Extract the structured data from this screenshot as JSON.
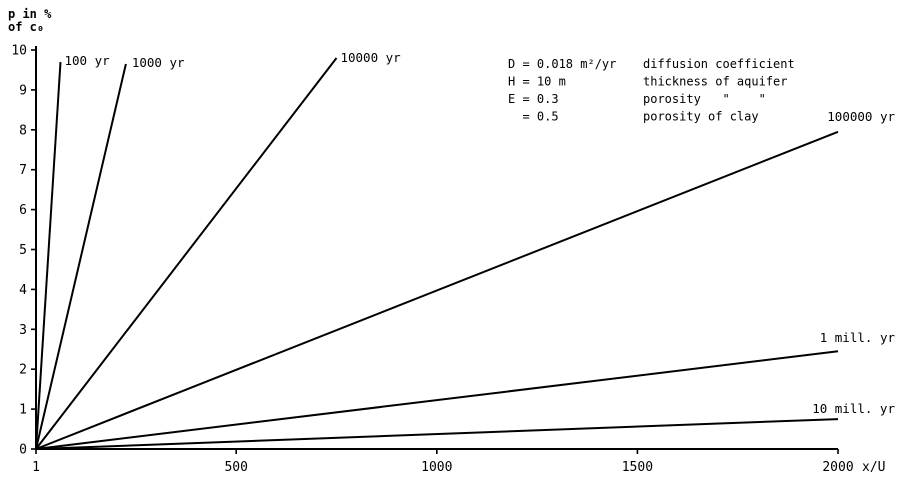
{
  "chart_data": {
    "type": "line",
    "title": "",
    "ylabel": [
      "p in %",
      "of c₀"
    ],
    "xlabel": "x/U",
    "xlim": [
      1,
      2000
    ],
    "ylim": [
      0,
      10
    ],
    "x_ticks": [
      1,
      500,
      1000,
      1500,
      2000
    ],
    "y_ticks": [
      0,
      1,
      2,
      3,
      4,
      5,
      6,
      7,
      8,
      9,
      10
    ],
    "series": [
      {
        "name": "100 yr",
        "points": [
          [
            1,
            0
          ],
          [
            62,
            9.7
          ]
        ]
      },
      {
        "name": "1000 yr",
        "points": [
          [
            1,
            0
          ],
          [
            225,
            9.65
          ]
        ]
      },
      {
        "name": "10000 yr",
        "points": [
          [
            1,
            0
          ],
          [
            750,
            9.8
          ]
        ]
      },
      {
        "name": "100000 yr",
        "points": [
          [
            1,
            0
          ],
          [
            2000,
            7.95
          ]
        ]
      },
      {
        "name": "1 mill. yr",
        "points": [
          [
            1,
            0
          ],
          [
            2000,
            2.45
          ]
        ]
      },
      {
        "name": "10 mill. yr",
        "points": [
          [
            1,
            0
          ],
          [
            2000,
            0.75
          ]
        ]
      }
    ],
    "parameters": [
      {
        "lhs": "D = 0.018 m²/yr",
        "desc": "diffusion coefficient"
      },
      {
        "lhs": "H = 10 m",
        "desc": "thickness of aquifer"
      },
      {
        "lhs": "E = 0.3",
        "desc": "porosity   \"    \""
      },
      {
        "lhs": "  = 0.5",
        "desc": "porosity of clay"
      }
    ],
    "grid": false,
    "line_color": "#000000"
  }
}
